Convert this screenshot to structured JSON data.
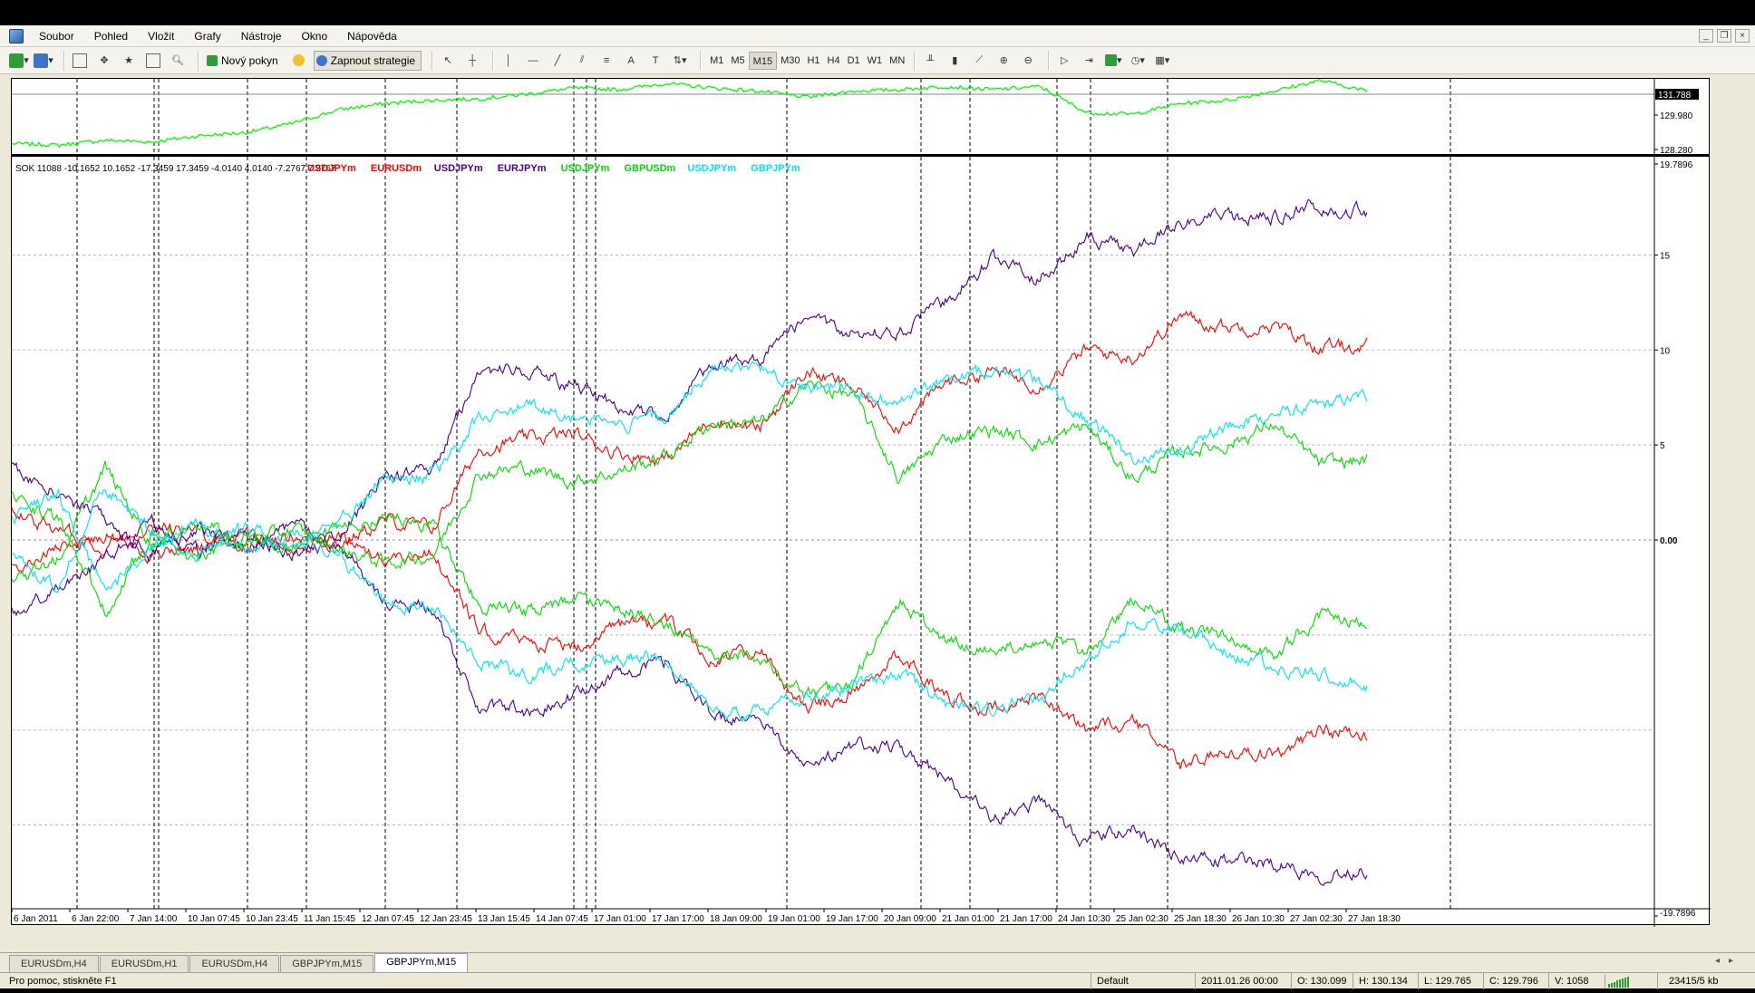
{
  "menu": {
    "items": [
      "Soubor",
      "Pohled",
      "Vložit",
      "Grafy",
      "Nástroje",
      "Okno",
      "Nápověda"
    ]
  },
  "toolbar": {
    "new_order_label": "Nový pokyn",
    "strategy_label": "Zapnout strategie",
    "timeframes": [
      "M1",
      "M5",
      "M15",
      "M30",
      "H1",
      "H4",
      "D1",
      "W1",
      "MN"
    ],
    "active_timeframe": "M15",
    "icons": [
      "new-chart-icon",
      "profiles-icon",
      "market-watch-icon",
      "navigator-icon",
      "terminal-icon",
      "favorites-icon",
      "tester-icon",
      "cursor-icon",
      "crosshair-icon",
      "vertical-line-icon",
      "horizontal-line-icon",
      "trendline-icon",
      "channel-icon",
      "fibonacci-icon",
      "text-icon",
      "label-icon",
      "arrows-icon",
      "bar-chart-icon",
      "candlestick-icon",
      "line-chart-icon",
      "zoom-in-icon",
      "zoom-out-icon",
      "autoscroll-icon",
      "chart-shift-icon",
      "indicators-icon",
      "periods-icon",
      "templates-icon"
    ]
  },
  "price_pane": {
    "price_current": "131.788",
    "price_ticks": [
      "129.980",
      "128.280"
    ],
    "line_color": "#00ff00"
  },
  "indicator_pane": {
    "header_text": "SOK 11088 -10.1652 10.1652 -17.3459 17.3459 -4.0140 4.0140 -7.2767 7.2767",
    "legend": [
      {
        "label": "USDJPYm",
        "color": "#ff0000"
      },
      {
        "label": "EURUSDm",
        "color": "#ff0000"
      },
      {
        "label": "USDJPYm",
        "color": "#4b0082"
      },
      {
        "label": "EURJPYm",
        "color": "#4b0082"
      },
      {
        "label": "USDJPYm",
        "color": "#00dd00"
      },
      {
        "label": "GBPUSDm",
        "color": "#00dd00"
      },
      {
        "label": "USDJPYm",
        "color": "#00e5ee"
      },
      {
        "label": "GBPJPYm",
        "color": "#00e5ee"
      }
    ],
    "y_ticks": [
      "19.7896",
      "15",
      "10",
      "5",
      "0.00",
      "-19.7896"
    ],
    "x_ticks": [
      "6 Jan 2011",
      "6 Jan 22:00",
      "7 Jan 14:00",
      "10 Jan 07:45",
      "10 Jan 23:45",
      "11 Jan 15:45",
      "12 Jan 07:45",
      "12 Jan 23:45",
      "13 Jan 15:45",
      "14 Jan 07:45",
      "17 Jan 01:00",
      "17 Jan 17:00",
      "18 Jan 09:00",
      "19 Jan 01:00",
      "19 Jan 17:00",
      "20 Jan 09:00",
      "21 Jan 01:00",
      "21 Jan 17:00",
      "24 Jan 10:30",
      "25 Jan 02:30",
      "25 Jan 18:30",
      "26 Jan 10:30",
      "27 Jan 02:30",
      "27 Jan 18:30"
    ]
  },
  "chart_data": [
    {
      "type": "line",
      "series": [
        {
          "values": [
            128.4,
            128.3,
            128.6,
            128.5,
            128.9,
            129.1,
            129.7,
            130.6,
            131.0,
            131.2,
            131.3,
            131.6,
            132.0,
            131.9,
            132.3,
            132.0,
            131.8,
            131.4,
            131.8,
            131.9,
            132.1,
            131.9,
            132.1,
            130.4,
            130.3,
            131.0,
            131.2,
            131.8,
            132.5,
            131.8
          ]
        }
      ],
      "ylim": [
        127.6,
        132.6
      ]
    },
    {
      "type": "line",
      "categories_note_removed": true,
      "series": [
        {
          "name": "USDJPYm",
          "color": "#ff0000",
          "values": [
            1.5,
            0.5,
            -0.3,
            0.8,
            0.4,
            -0.4,
            0.3,
            -0.2,
            1.0,
            0.6,
            4.8,
            5.3,
            5.6,
            4.6,
            4.2,
            6.4,
            5.8,
            8.9,
            8.0,
            6.0,
            8.3,
            8.9,
            8.2,
            10.0,
            9.6,
            11.8,
            11.2,
            11.3,
            10.1,
            10.2
          ]
        },
        {
          "name": "EURUSDm",
          "color": "#ff0000",
          "values": [
            -1.5,
            -0.5,
            0.3,
            -0.8,
            -0.4,
            0.4,
            -0.3,
            0.2,
            -1.0,
            -0.6,
            -4.8,
            -5.3,
            -5.6,
            -4.6,
            -4.2,
            -6.4,
            -5.8,
            -8.9,
            -8.0,
            -6.0,
            -8.3,
            -8.9,
            -8.2,
            -10.0,
            -9.6,
            -11.8,
            -11.2,
            -11.3,
            -10.1,
            -10.2
          ]
        },
        {
          "name": "USDJPYm",
          "color": "#4b0082",
          "values": [
            3.8,
            2.5,
            1.0,
            -0.8,
            0.6,
            -0.5,
            0.8,
            0.2,
            3.3,
            3.6,
            8.9,
            9.0,
            8.2,
            7.0,
            6.4,
            9.3,
            9.6,
            11.7,
            10.9,
            10.9,
            12.6,
            14.8,
            13.8,
            15.9,
            15.2,
            16.8,
            16.9,
            17.0,
            17.6,
            17.3
          ]
        },
        {
          "name": "EURJPYm",
          "color": "#4b0082",
          "values": [
            -3.8,
            -2.5,
            -1.0,
            0.8,
            -0.6,
            0.5,
            -0.8,
            -0.2,
            -3.3,
            -3.6,
            -8.9,
            -9.0,
            -8.2,
            -7.0,
            -6.4,
            -9.3,
            -9.6,
            -11.7,
            -10.9,
            -10.9,
            -12.6,
            -14.8,
            -13.8,
            -15.9,
            -15.2,
            -16.8,
            -16.9,
            -17.0,
            -17.6,
            -17.3
          ]
        },
        {
          "name": "USDJPYm",
          "color": "#00dd00",
          "values": [
            -2.3,
            -1.0,
            3.8,
            -0.2,
            1.0,
            -0.3,
            0.6,
            -0.5,
            -1.2,
            -0.8,
            3.5,
            3.8,
            3.1,
            3.6,
            4.4,
            6.2,
            6.1,
            8.2,
            7.6,
            3.2,
            5.4,
            5.8,
            5.1,
            6.0,
            3.2,
            4.7,
            5.0,
            6.1,
            4.0,
            4.2
          ]
        },
        {
          "name": "GBPUSDm",
          "color": "#00dd00",
          "values": [
            2.3,
            1.0,
            -3.8,
            0.2,
            -1.0,
            0.3,
            -0.6,
            0.5,
            1.2,
            0.8,
            -3.5,
            -3.8,
            -3.1,
            -3.6,
            -4.4,
            -6.2,
            -6.1,
            -8.2,
            -7.6,
            -3.2,
            -5.4,
            -5.8,
            -5.1,
            -6.0,
            -3.2,
            -4.7,
            -5.0,
            -6.1,
            -4.0,
            -4.2
          ]
        },
        {
          "name": "USDJPYm",
          "color": "#00e5ee",
          "values": [
            -1.0,
            -2.5,
            2.9,
            0.4,
            -0.8,
            0.7,
            -0.4,
            0.8,
            3.4,
            3.3,
            6.3,
            7.0,
            6.5,
            6.1,
            6.4,
            9.0,
            9.0,
            8.2,
            7.8,
            7.1,
            8.6,
            8.9,
            8.3,
            6.4,
            4.2,
            4.8,
            6.0,
            6.6,
            7.0,
            7.6
          ]
        },
        {
          "name": "GBPJPYm",
          "color": "#00e5ee",
          "values": [
            1.0,
            2.5,
            -2.9,
            -0.4,
            0.8,
            -0.7,
            0.4,
            -0.8,
            -3.4,
            -3.3,
            -6.3,
            -7.0,
            -6.5,
            -6.1,
            -6.4,
            -9.0,
            -9.0,
            -8.2,
            -7.8,
            -7.1,
            -8.6,
            -8.9,
            -8.3,
            -6.4,
            -4.2,
            -4.8,
            -6.0,
            -6.6,
            -7.0,
            -7.6
          ]
        }
      ],
      "ylim": [
        -19.7896,
        19.7896
      ]
    }
  ],
  "tabs": [
    "EURUSDm,H4",
    "EURUSDm,H1",
    "EURUSDm,H4",
    "GBPJPYm,M15",
    "GBPJPYm,M15"
  ],
  "active_tab": 4,
  "status": {
    "help": "Pro pomoc, stiskněte F1",
    "profile": "Default",
    "datetime": "2011.01.26 00:00",
    "open": "O: 130.099",
    "high": "H: 130.134",
    "low": "L: 129.765",
    "close": "C: 129.796",
    "volume": "V: 1058",
    "traffic": "23415/5 kb"
  }
}
